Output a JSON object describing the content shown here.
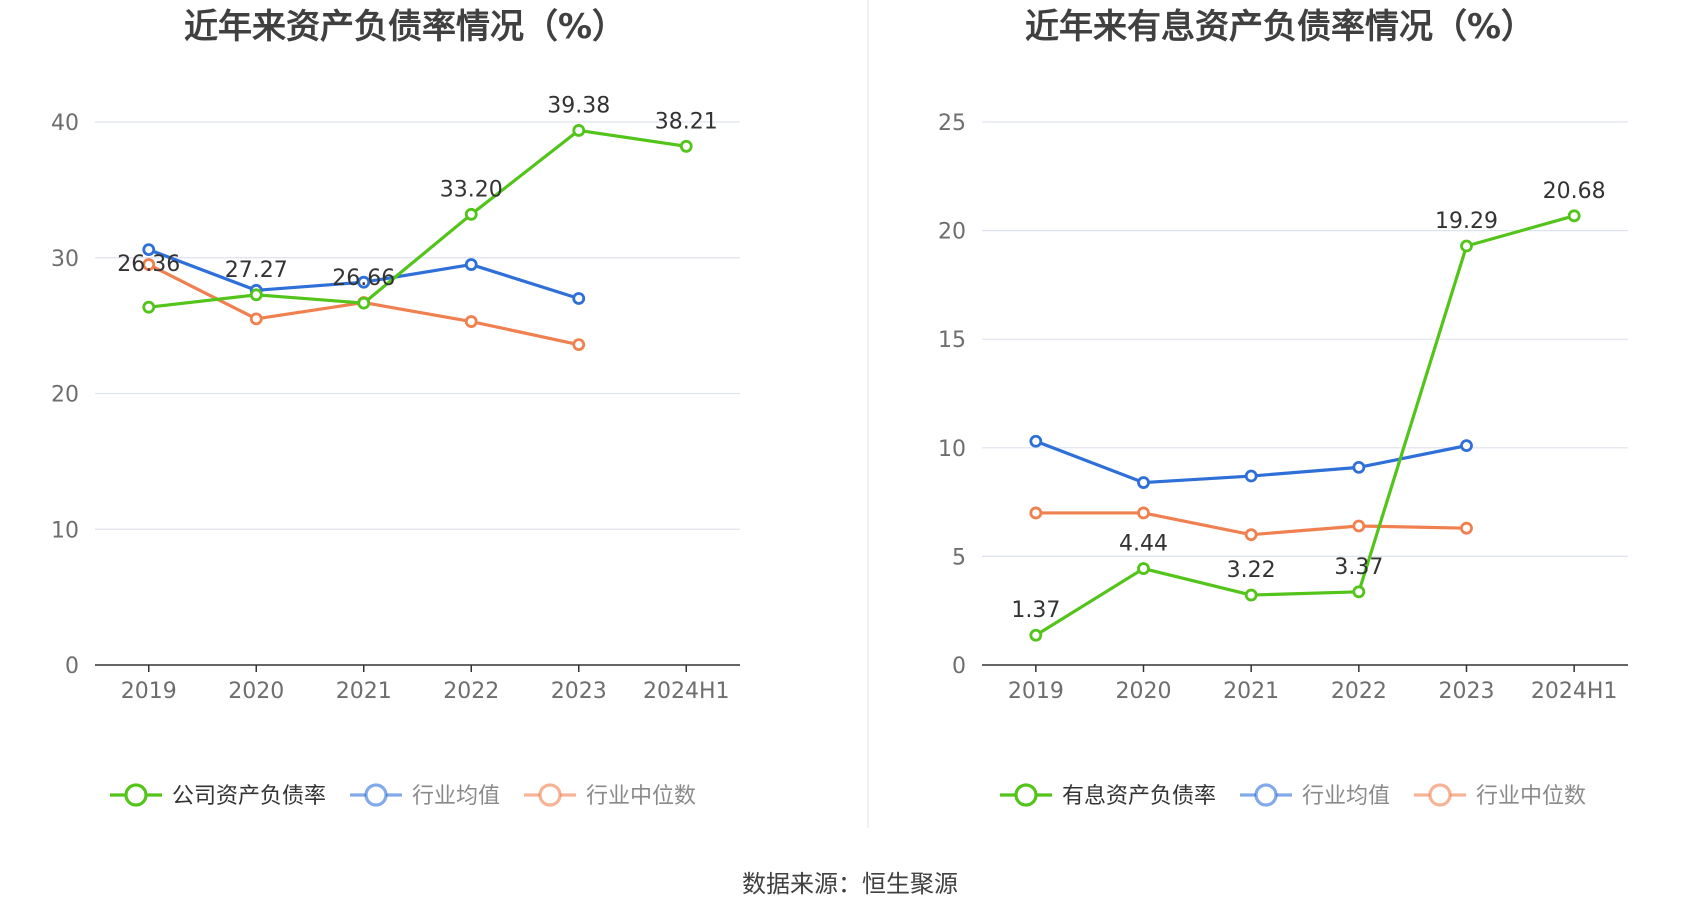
{
  "source": "数据来源：恒生聚源",
  "charts": [
    {
      "type": "line",
      "title": "近年来资产负债率情况（%）",
      "x": [
        "2019",
        "2020",
        "2021",
        "2022",
        "2023",
        "2024H1"
      ],
      "y_ticks": [
        "0",
        "10",
        "20",
        "30",
        "40"
      ],
      "ylim": [
        0,
        40
      ],
      "grid": true,
      "legend_position": "bottom",
      "series": [
        {
          "name": "公司资产负债率",
          "color": "#52c41a",
          "values": [
            26.36,
            27.27,
            26.66,
            33.2,
            39.38,
            38.21
          ],
          "labels": [
            "26.36",
            "27.27",
            "26.66",
            "33.20",
            "39.38",
            "38.21"
          ]
        },
        {
          "name": "行业均值",
          "color": "#2f6fd8",
          "values": [
            30.6,
            27.6,
            28.2,
            29.5,
            27.0,
            null
          ]
        },
        {
          "name": "行业中位数",
          "color": "#f08050",
          "values": [
            29.5,
            25.5,
            26.7,
            25.3,
            23.6,
            null
          ]
        }
      ]
    },
    {
      "type": "line",
      "title": "近年来有息资产负债率情况（%）",
      "x": [
        "2019",
        "2020",
        "2021",
        "2022",
        "2023",
        "2024H1"
      ],
      "y_ticks": [
        "0",
        "5",
        "10",
        "15",
        "20",
        "25"
      ],
      "ylim": [
        0,
        25
      ],
      "grid": true,
      "legend_position": "bottom",
      "series": [
        {
          "name": "有息资产负债率",
          "color": "#52c41a",
          "values": [
            1.37,
            4.44,
            3.22,
            3.37,
            19.29,
            20.68
          ],
          "labels": [
            "1.37",
            "4.44",
            "3.22",
            "3.37",
            "19.29",
            "20.68"
          ]
        },
        {
          "name": "行业均值",
          "color": "#2f6fd8",
          "values": [
            10.3,
            8.4,
            8.7,
            9.1,
            10.1,
            null
          ]
        },
        {
          "name": "行业中位数",
          "color": "#f08050",
          "values": [
            7.0,
            7.0,
            6.0,
            6.4,
            6.3,
            null
          ]
        }
      ]
    }
  ],
  "chart_data": [
    {
      "type": "line",
      "title": "近年来资产负债率情况（%）",
      "categories": [
        "2019",
        "2020",
        "2021",
        "2022",
        "2023",
        "2024H1"
      ],
      "ylim": [
        0,
        40
      ],
      "series": [
        {
          "name": "公司资产负债率",
          "values": [
            26.36,
            27.27,
            26.66,
            33.2,
            39.38,
            38.21
          ]
        },
        {
          "name": "行业均值",
          "values": [
            30.6,
            27.6,
            28.2,
            29.5,
            27.0,
            null
          ]
        },
        {
          "name": "行业中位数",
          "values": [
            29.5,
            25.5,
            26.7,
            25.3,
            23.6,
            null
          ]
        }
      ]
    },
    {
      "type": "line",
      "title": "近年来有息资产负债率情况（%）",
      "categories": [
        "2019",
        "2020",
        "2021",
        "2022",
        "2023",
        "2024H1"
      ],
      "ylim": [
        0,
        25
      ],
      "series": [
        {
          "name": "有息资产负债率",
          "values": [
            1.37,
            4.44,
            3.22,
            3.37,
            19.29,
            20.68
          ]
        },
        {
          "name": "行业均值",
          "values": [
            10.3,
            8.4,
            8.7,
            9.1,
            10.1,
            null
          ]
        },
        {
          "name": "行业中位数",
          "values": [
            7.0,
            7.0,
            6.0,
            6.4,
            6.3,
            null
          ]
        }
      ]
    }
  ]
}
